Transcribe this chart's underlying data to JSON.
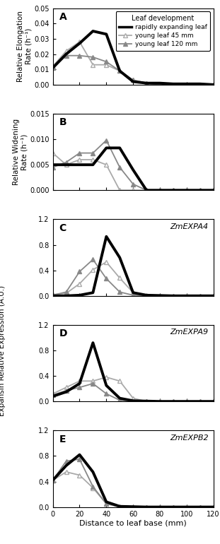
{
  "panel_A": {
    "title": "A",
    "ylabel": "Relative Elongation\nRate (h⁻¹)",
    "ylim": [
      0,
      0.05
    ],
    "yticks": [
      0.0,
      0.01,
      0.02,
      0.03,
      0.04,
      0.05
    ],
    "rapid": {
      "x": [
        0,
        10,
        20,
        30,
        40,
        50,
        60,
        70,
        80,
        90,
        100,
        110,
        120
      ],
      "y": [
        0.011,
        0.02,
        0.027,
        0.035,
        0.033,
        0.009,
        0.002,
        0.001,
        0.001,
        0.0005,
        0.0005,
        0.0005,
        0.0
      ]
    },
    "y45": {
      "x": [
        0,
        10,
        20,
        30,
        40,
        50,
        60,
        70,
        80,
        90,
        100,
        110,
        120
      ],
      "y": [
        0.012,
        0.022,
        0.028,
        0.013,
        0.013,
        0.009,
        0.003,
        0.001,
        0.0,
        0.0,
        0.0,
        0.0,
        0.0
      ]
    },
    "y120": {
      "x": [
        0,
        10,
        20,
        30,
        40,
        50,
        60,
        70,
        80,
        90,
        100,
        110,
        120
      ],
      "y": [
        0.011,
        0.019,
        0.019,
        0.018,
        0.015,
        0.009,
        0.003,
        0.001,
        0.0,
        0.0,
        0.0,
        0.0,
        0.0
      ]
    }
  },
  "panel_B": {
    "title": "B",
    "ylabel": "Relative Widening\nRate (h⁻¹)",
    "ylim": [
      0,
      0.015
    ],
    "yticks": [
      0.0,
      0.005,
      0.01,
      0.015
    ],
    "rapid": {
      "x": [
        0,
        10,
        20,
        30,
        40,
        50,
        60,
        70,
        80,
        90,
        100,
        110,
        120
      ],
      "y": [
        0.005,
        0.005,
        0.005,
        0.005,
        0.0083,
        0.0083,
        0.004,
        0.0,
        0.0,
        0.0,
        0.0,
        0.0,
        0.0
      ]
    },
    "y45": {
      "x": [
        0,
        10,
        20,
        30,
        40,
        50,
        60,
        70,
        80,
        90,
        100,
        110,
        120
      ],
      "y": [
        0.0073,
        0.005,
        0.006,
        0.006,
        0.005,
        0.0,
        0.0,
        0.0,
        0.0,
        0.0,
        0.0,
        0.0,
        0.0
      ]
    },
    "y120": {
      "x": [
        0,
        10,
        20,
        30,
        40,
        50,
        60,
        70,
        80,
        90,
        100,
        110,
        120
      ],
      "y": [
        0.0045,
        0.0055,
        0.0073,
        0.0073,
        0.0098,
        0.0045,
        0.0012,
        0.0,
        0.0,
        0.0,
        0.0,
        0.0,
        0.0
      ]
    }
  },
  "panel_C": {
    "title": "C",
    "gene": "ZmEXPA4",
    "ylim": [
      0,
      1.2
    ],
    "yticks": [
      0.0,
      0.4,
      0.8,
      1.2
    ],
    "rapid": {
      "x": [
        0,
        10,
        20,
        30,
        40,
        50,
        60,
        70,
        80,
        90,
        100,
        110,
        120
      ],
      "y": [
        0.0,
        0.0,
        0.01,
        0.05,
        0.93,
        0.6,
        0.05,
        0.01,
        0.005,
        0.0,
        0.0,
        0.0,
        0.0
      ]
    },
    "y45": {
      "x": [
        0,
        10,
        20,
        30,
        40,
        50,
        60,
        70,
        80,
        90,
        100,
        110,
        120
      ],
      "y": [
        0.02,
        0.04,
        0.19,
        0.41,
        0.53,
        0.28,
        0.05,
        0.01,
        0.0,
        0.0,
        0.0,
        0.0,
        0.0
      ]
    },
    "y120": {
      "x": [
        0,
        10,
        20,
        30,
        40,
        50,
        60,
        70,
        80,
        90,
        100,
        110,
        120
      ],
      "y": [
        0.01,
        0.06,
        0.38,
        0.57,
        0.27,
        0.06,
        0.01,
        0.0,
        0.0,
        0.0,
        0.0,
        0.0,
        0.0
      ]
    }
  },
  "panel_D": {
    "title": "D",
    "gene": "ZmEXPA9",
    "ylim": [
      0,
      1.2
    ],
    "yticks": [
      0.0,
      0.4,
      0.8,
      1.2
    ],
    "rapid": {
      "x": [
        0,
        10,
        20,
        30,
        40,
        50,
        60,
        70,
        80,
        90,
        100,
        110,
        120
      ],
      "y": [
        0.08,
        0.15,
        0.28,
        0.92,
        0.25,
        0.05,
        0.01,
        0.005,
        0.0,
        0.0,
        0.0,
        0.0,
        0.0
      ]
    },
    "y45": {
      "x": [
        0,
        10,
        20,
        30,
        40,
        50,
        60,
        70,
        80,
        90,
        100,
        110,
        120
      ],
      "y": [
        0.12,
        0.22,
        0.32,
        0.32,
        0.38,
        0.32,
        0.05,
        0.0,
        0.0,
        0.0,
        0.0,
        0.0,
        0.0
      ]
    },
    "y120": {
      "x": [
        0,
        10,
        20,
        30,
        40,
        50,
        60,
        70,
        80,
        90,
        100,
        110,
        120
      ],
      "y": [
        0.1,
        0.17,
        0.22,
        0.28,
        0.12,
        0.02,
        0.0,
        0.0,
        0.0,
        0.0,
        0.0,
        0.0,
        0.0
      ]
    }
  },
  "panel_E": {
    "title": "E",
    "gene": "ZmEXPB2",
    "ylim": [
      0,
      1.2
    ],
    "yticks": [
      0.0,
      0.4,
      0.8,
      1.2
    ],
    "rapid": {
      "x": [
        0,
        10,
        20,
        30,
        40,
        50,
        60,
        70,
        80,
        90,
        100,
        110,
        120
      ],
      "y": [
        0.42,
        0.65,
        0.82,
        0.55,
        0.08,
        0.01,
        0.005,
        0.0,
        0.0,
        0.0,
        0.0,
        0.0,
        0.0
      ]
    },
    "y45": {
      "x": [
        0,
        10,
        20,
        30,
        40,
        50,
        60,
        70,
        80,
        90,
        100,
        110,
        120
      ],
      "y": [
        0.42,
        0.55,
        0.5,
        0.3,
        0.05,
        0.0,
        0.0,
        0.0,
        0.0,
        0.0,
        0.0,
        0.0,
        0.0
      ]
    },
    "y120": {
      "x": [
        0,
        10,
        20,
        30,
        40,
        50,
        60,
        70,
        80,
        90,
        100,
        110,
        120
      ],
      "y": [
        0.42,
        0.72,
        0.75,
        0.32,
        0.05,
        0.01,
        0.0,
        0.0,
        0.0,
        0.0,
        0.0,
        0.0,
        0.0
      ]
    }
  },
  "xlabel": "Distance to leaf base (mm)",
  "color_rapid": "#000000",
  "color_y45": "#aaaaaa",
  "color_y120": "#888888",
  "ylabel_expansin": "Expansin Relative Expression (A.U.)"
}
